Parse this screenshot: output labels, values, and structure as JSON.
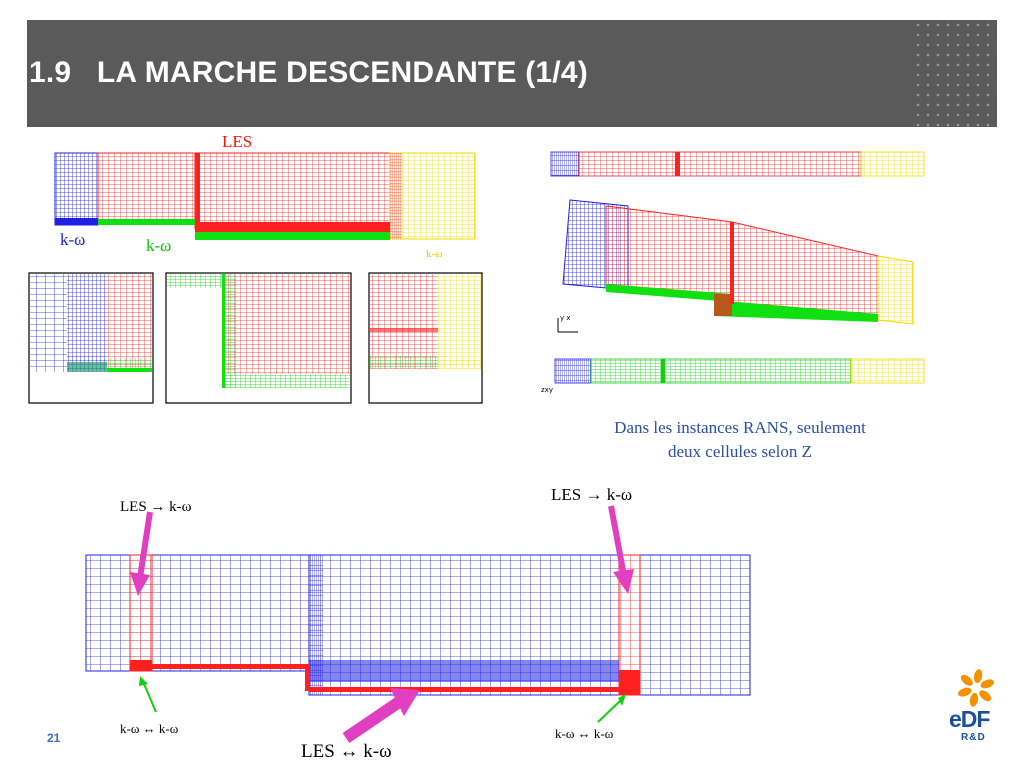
{
  "slide": {
    "title": "1.9   LA MARCHE DESCENDANTE (1/4)",
    "page_number": "21"
  },
  "top_mesh": {
    "les_label": "LES",
    "kw_left": "k-ω",
    "kw_middle": "k-ω",
    "kw_right": "k-ω"
  },
  "rans_view": {
    "axis_label_1": "y x",
    "axis_label_2": "zxy",
    "caption_line1": "Dans les instances RANS, seulement",
    "caption_line2": "deux cellules selon Z"
  },
  "bottom_mesh": {
    "label_top_left": "LES → k-ω",
    "label_top_right": "LES → k-ω",
    "label_bottom_left": "k-ω ↔ k-ω",
    "label_bottom_right": "k-ω ↔ k-ω",
    "label_bottom_center": "LES ↔ k-ω"
  },
  "logo": {
    "brand": "eDF",
    "subtitle": "R&D"
  },
  "colors": {
    "header_bg": "#5a5a5a",
    "les_red": "#ff2020",
    "kw_blue": "#2020e0",
    "kw_green": "#10e010",
    "kw_yellow": "#ffee00",
    "arrow_magenta": "#e040c0",
    "caption_blue": "#2a4fa8"
  }
}
